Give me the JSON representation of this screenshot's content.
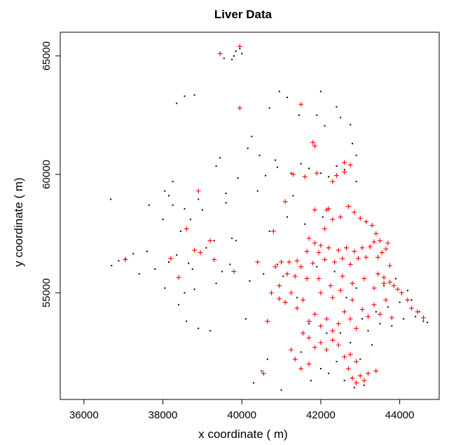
{
  "chart_data": {
    "type": "scatter",
    "title": "Liver Data",
    "xlabel": "x coordinate ( m)",
    "ylabel": "y coordinate ( m)",
    "xlim": [
      35400,
      45000
    ],
    "ylim": [
      50500,
      66000
    ],
    "x_ticks": [
      36000,
      38000,
      40000,
      42000,
      44000
    ],
    "y_ticks": [
      55000,
      60000,
      65000
    ],
    "x_tick_labels": [
      "36000",
      "38000",
      "40000",
      "42000",
      "44000"
    ],
    "y_tick_labels": [
      "55000",
      "60000",
      "65000"
    ],
    "grid": false,
    "legend": "none",
    "colors": {
      "series_1": "#000000",
      "series_2": "#ff0000",
      "frame": "#000000"
    },
    "series": [
      {
        "marker": "dot",
        "color": "#000000",
        "points": [
          [
            36680,
            58950
          ],
          [
            36700,
            56150
          ],
          [
            36880,
            56350
          ],
          [
            37050,
            56450
          ],
          [
            37250,
            56650
          ],
          [
            37400,
            55800
          ],
          [
            37600,
            56750
          ],
          [
            37800,
            56000
          ],
          [
            38000,
            58100
          ],
          [
            38050,
            55200
          ],
          [
            38150,
            56300
          ],
          [
            38250,
            58700
          ],
          [
            38350,
            56600
          ],
          [
            38400,
            54500
          ],
          [
            38450,
            57600
          ],
          [
            38550,
            55000
          ],
          [
            38600,
            53800
          ],
          [
            38650,
            56250
          ],
          [
            38700,
            58100
          ],
          [
            38750,
            56000
          ],
          [
            38800,
            55150
          ],
          [
            38900,
            53500
          ],
          [
            39000,
            58500
          ],
          [
            39100,
            56900
          ],
          [
            39200,
            53400
          ],
          [
            39300,
            57200
          ],
          [
            39350,
            55400
          ],
          [
            39500,
            55900
          ],
          [
            39600,
            58800
          ],
          [
            39700,
            56200
          ],
          [
            39750,
            57300
          ],
          [
            39850,
            57200
          ],
          [
            40100,
            53900
          ],
          [
            40200,
            55500
          ],
          [
            40300,
            51200
          ],
          [
            40400,
            59300
          ],
          [
            40500,
            51700
          ],
          [
            40550,
            55800
          ],
          [
            40650,
            52200
          ],
          [
            40700,
            57600
          ],
          [
            40900,
            56200
          ],
          [
            41000,
            50900
          ],
          [
            41050,
            55700
          ],
          [
            41150,
            58200
          ],
          [
            41300,
            59100
          ],
          [
            41400,
            54800
          ],
          [
            41500,
            52500
          ],
          [
            41600,
            57900
          ],
          [
            41700,
            53700
          ],
          [
            41750,
            51300
          ],
          [
            41900,
            56100
          ],
          [
            42000,
            51800
          ],
          [
            42050,
            58200
          ],
          [
            42150,
            53300
          ],
          [
            42200,
            51600
          ],
          [
            42350,
            55900
          ],
          [
            42400,
            52100
          ],
          [
            42500,
            53300
          ],
          [
            42600,
            51300
          ],
          [
            42650,
            54800
          ],
          [
            42750,
            52900
          ],
          [
            42850,
            51000
          ],
          [
            42900,
            55200
          ],
          [
            43000,
            52200
          ],
          [
            43050,
            53900
          ],
          [
            43100,
            51100
          ],
          [
            43200,
            53400
          ],
          [
            43300,
            52800
          ],
          [
            43400,
            54200
          ],
          [
            43500,
            53700
          ],
          [
            43600,
            55300
          ],
          [
            43700,
            54400
          ],
          [
            43800,
            53600
          ],
          [
            43900,
            55600
          ],
          [
            44000,
            54600
          ],
          [
            44100,
            53900
          ],
          [
            44200,
            55100
          ],
          [
            44300,
            54700
          ],
          [
            44400,
            54000
          ],
          [
            44500,
            54200
          ],
          [
            44600,
            53800
          ],
          [
            44700,
            53750
          ],
          [
            39750,
            64850
          ],
          [
            39850,
            65200
          ],
          [
            39950,
            65300
          ],
          [
            40000,
            65100
          ],
          [
            39550,
            64900
          ],
          [
            39800,
            65000
          ],
          [
            38550,
            63300
          ],
          [
            38800,
            63350
          ],
          [
            38350,
            63000
          ],
          [
            40700,
            62800
          ],
          [
            40950,
            63500
          ],
          [
            41150,
            63250
          ],
          [
            41450,
            62500
          ],
          [
            41900,
            62500
          ],
          [
            42000,
            63500
          ],
          [
            42100,
            62050
          ],
          [
            42400,
            62850
          ],
          [
            42500,
            62400
          ],
          [
            42750,
            62100
          ],
          [
            42800,
            61300
          ],
          [
            42900,
            60800
          ],
          [
            42900,
            59700
          ],
          [
            42600,
            60200
          ],
          [
            42400,
            60350
          ],
          [
            42200,
            59900
          ],
          [
            42000,
            60050
          ],
          [
            41700,
            60250
          ],
          [
            41500,
            60450
          ],
          [
            41250,
            60050
          ],
          [
            40850,
            60600
          ],
          [
            40450,
            60800
          ],
          [
            40600,
            59950
          ],
          [
            40900,
            60300
          ],
          [
            39900,
            59850
          ],
          [
            39600,
            59200
          ],
          [
            39450,
            60700
          ],
          [
            40250,
            61600
          ],
          [
            40150,
            61100
          ],
          [
            39350,
            60350
          ],
          [
            38250,
            59700
          ],
          [
            38900,
            58950
          ],
          [
            38550,
            58550
          ],
          [
            38150,
            59100
          ],
          [
            37650,
            58700
          ],
          [
            38050,
            59300
          ]
        ]
      },
      {
        "marker": "plus",
        "color": "#ff0000",
        "points": [
          [
            37050,
            56400
          ],
          [
            38200,
            56450
          ],
          [
            38400,
            55650
          ],
          [
            38600,
            57700
          ],
          [
            38800,
            56800
          ],
          [
            38950,
            56700
          ],
          [
            39200,
            57200
          ],
          [
            39300,
            56400
          ],
          [
            38900,
            59300
          ],
          [
            39450,
            65100
          ],
          [
            39950,
            65400
          ],
          [
            39950,
            62800
          ],
          [
            41500,
            62950
          ],
          [
            41800,
            61350
          ],
          [
            41850,
            61200
          ],
          [
            41100,
            58850
          ],
          [
            41000,
            56300
          ],
          [
            40400,
            56300
          ],
          [
            40650,
            53800
          ],
          [
            39800,
            55900
          ],
          [
            41200,
            56300
          ],
          [
            41350,
            55700
          ],
          [
            41500,
            56100
          ],
          [
            41650,
            55600
          ],
          [
            41800,
            56250
          ],
          [
            41950,
            56700
          ],
          [
            42100,
            56400
          ],
          [
            42200,
            56900
          ],
          [
            42350,
            56300
          ],
          [
            42450,
            56800
          ],
          [
            42550,
            56450
          ],
          [
            42650,
            56900
          ],
          [
            42750,
            56200
          ],
          [
            42850,
            56750
          ],
          [
            42950,
            56450
          ],
          [
            43050,
            56900
          ],
          [
            43150,
            56500
          ],
          [
            43250,
            56950
          ],
          [
            43350,
            57150
          ],
          [
            43450,
            56500
          ],
          [
            43550,
            56700
          ],
          [
            43650,
            56850
          ],
          [
            43750,
            56150
          ],
          [
            43450,
            55800
          ],
          [
            43600,
            55650
          ],
          [
            43750,
            55450
          ],
          [
            43850,
            55300
          ],
          [
            43950,
            55150
          ],
          [
            44050,
            55000
          ],
          [
            44200,
            54700
          ],
          [
            44300,
            54350
          ],
          [
            44450,
            54200
          ],
          [
            44600,
            53950
          ],
          [
            42100,
            57700
          ],
          [
            42300,
            58100
          ],
          [
            42500,
            58200
          ],
          [
            42700,
            58650
          ],
          [
            42850,
            58400
          ],
          [
            43000,
            58150
          ],
          [
            43150,
            58000
          ],
          [
            43300,
            57850
          ],
          [
            43400,
            57500
          ],
          [
            43500,
            57200
          ],
          [
            43700,
            57100
          ],
          [
            42200,
            58550
          ],
          [
            42400,
            59950
          ],
          [
            42600,
            60100
          ],
          [
            42600,
            60500
          ],
          [
            42750,
            60400
          ],
          [
            42300,
            59700
          ],
          [
            41850,
            58500
          ],
          [
            42150,
            58500
          ],
          [
            41700,
            57300
          ],
          [
            41850,
            57100
          ],
          [
            42000,
            57000
          ],
          [
            41600,
            59900
          ],
          [
            41900,
            60050
          ],
          [
            41300,
            60000
          ],
          [
            40800,
            57600
          ],
          [
            40850,
            56100
          ],
          [
            40950,
            55300
          ],
          [
            41100,
            54600
          ],
          [
            41250,
            55000
          ],
          [
            41400,
            54350
          ],
          [
            41550,
            54700
          ],
          [
            41700,
            53800
          ],
          [
            41850,
            54100
          ],
          [
            42000,
            53600
          ],
          [
            42150,
            53900
          ],
          [
            42300,
            53400
          ],
          [
            42450,
            53700
          ],
          [
            42600,
            54200
          ],
          [
            42750,
            53900
          ],
          [
            42900,
            53500
          ],
          [
            43050,
            54300
          ],
          [
            43200,
            54000
          ],
          [
            43350,
            54500
          ],
          [
            43500,
            54100
          ],
          [
            43650,
            54700
          ],
          [
            43800,
            53950
          ],
          [
            41550,
            53300
          ],
          [
            41700,
            53100
          ],
          [
            41850,
            52700
          ],
          [
            42000,
            52900
          ],
          [
            42150,
            52600
          ],
          [
            42300,
            53000
          ],
          [
            42450,
            52800
          ],
          [
            42600,
            52300
          ],
          [
            42750,
            52400
          ],
          [
            42900,
            52100
          ],
          [
            41250,
            52600
          ],
          [
            41350,
            52200
          ],
          [
            41500,
            51800
          ],
          [
            41700,
            52000
          ],
          [
            42700,
            51800
          ],
          [
            42800,
            51400
          ],
          [
            42900,
            51200
          ],
          [
            43000,
            51500
          ],
          [
            43100,
            51300
          ],
          [
            43200,
            51600
          ],
          [
            43400,
            51700
          ],
          [
            40550,
            51600
          ],
          [
            40750,
            55000
          ],
          [
            40950,
            54750
          ],
          [
            41150,
            55800
          ],
          [
            41400,
            56350
          ],
          [
            41650,
            56750
          ],
          [
            41950,
            55600
          ],
          [
            42250,
            55300
          ],
          [
            42550,
            55700
          ],
          [
            42800,
            55400
          ],
          [
            43100,
            55600
          ],
          [
            43350,
            55200
          ],
          [
            43600,
            55400
          ],
          [
            42000,
            55000
          ],
          [
            42300,
            54800
          ],
          [
            42500,
            55100
          ],
          [
            42800,
            54700
          ]
        ]
      }
    ]
  }
}
